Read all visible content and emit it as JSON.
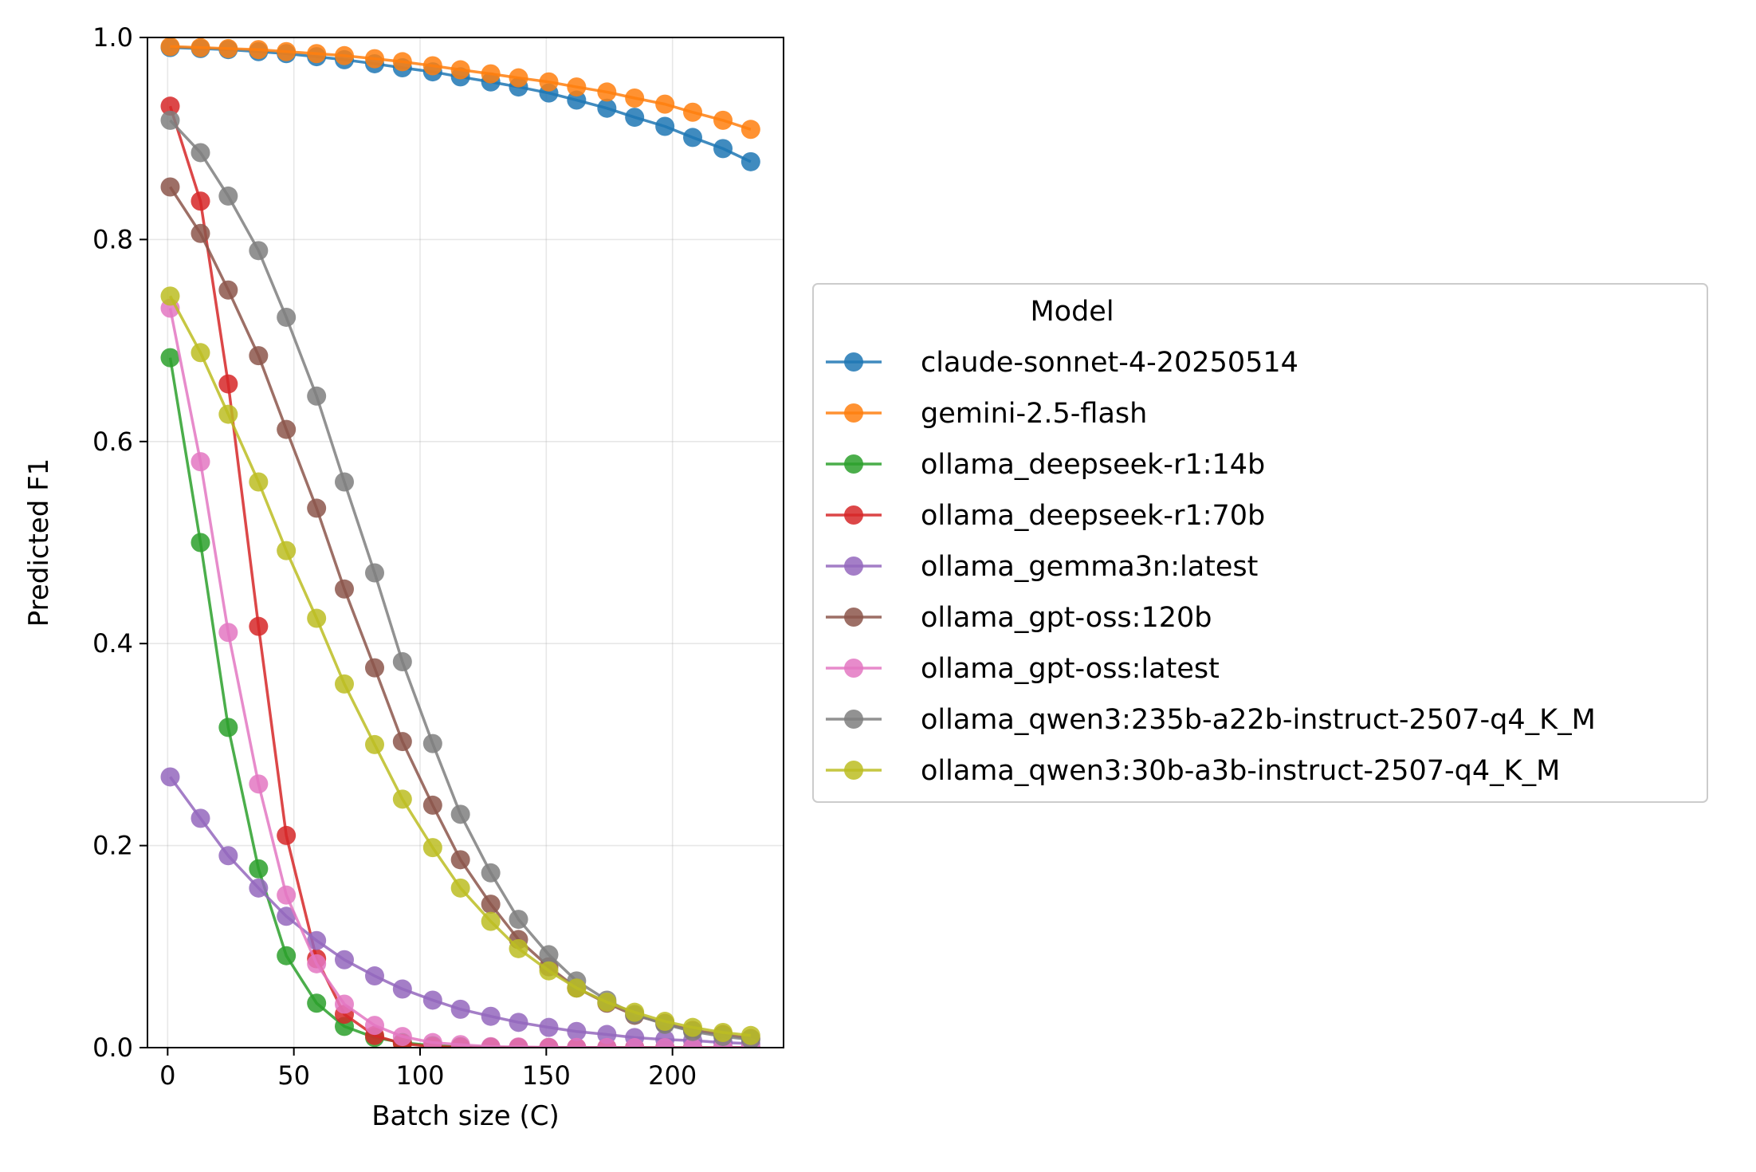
{
  "chart_data": {
    "type": "line",
    "xlabel": "Batch size (C)",
    "ylabel": "Predicted F1",
    "xlim": [
      -8,
      244
    ],
    "ylim": [
      0,
      1
    ],
    "xticks": [
      0,
      50,
      100,
      150,
      200
    ],
    "yticks": [
      0.0,
      0.2,
      0.4,
      0.6,
      0.8,
      1.0
    ],
    "xtick_labels": [
      "0",
      "50",
      "100",
      "150",
      "200"
    ],
    "ytick_labels": [
      "0.0",
      "0.2",
      "0.4",
      "0.6",
      "0.8",
      "1.0"
    ],
    "grid": true,
    "legend_title": "Model",
    "legend_placement": "outside-right",
    "x": [
      1,
      13,
      24,
      36,
      47,
      59,
      70,
      82,
      93,
      105,
      116,
      128,
      139,
      151,
      162,
      174,
      185,
      197,
      208,
      220,
      231
    ],
    "series": [
      {
        "name": "claude-sonnet-4-20250514",
        "color": "#1f77b4",
        "values": [
          0.99,
          0.989,
          0.988,
          0.986,
          0.984,
          0.981,
          0.978,
          0.974,
          0.97,
          0.966,
          0.961,
          0.956,
          0.951,
          0.945,
          0.938,
          0.93,
          0.921,
          0.912,
          0.901,
          0.89,
          0.877
        ]
      },
      {
        "name": "gemini-2.5-flash",
        "color": "#ff7f0e",
        "values": [
          0.991,
          0.99,
          0.989,
          0.988,
          0.986,
          0.984,
          0.982,
          0.979,
          0.976,
          0.972,
          0.968,
          0.964,
          0.96,
          0.956,
          0.951,
          0.946,
          0.94,
          0.934,
          0.926,
          0.918,
          0.909
        ]
      },
      {
        "name": "ollama_deepseek-r1:14b",
        "color": "#2ca02c",
        "values": [
          0.683,
          0.5,
          0.317,
          0.177,
          0.091,
          0.044,
          0.021,
          0.01,
          0.005,
          0.002,
          0.001,
          0.0005,
          0.0002,
          0.0001,
          0.0,
          0.0,
          0.0,
          0.0,
          0.0,
          0.0,
          0.0
        ]
      },
      {
        "name": "ollama_deepseek-r1:70b",
        "color": "#d62728",
        "values": [
          0.932,
          0.838,
          0.657,
          0.417,
          0.21,
          0.088,
          0.033,
          0.012,
          0.004,
          0.001,
          0.0004,
          0.0001,
          0.0,
          0.0,
          0.0,
          0.0,
          0.0,
          0.0,
          0.0,
          0.0,
          0.0
        ]
      },
      {
        "name": "ollama_gemma3n:latest",
        "color": "#9467bd",
        "values": [
          0.268,
          0.227,
          0.19,
          0.158,
          0.13,
          0.106,
          0.087,
          0.071,
          0.058,
          0.047,
          0.038,
          0.031,
          0.025,
          0.02,
          0.016,
          0.013,
          0.01,
          0.008,
          0.007,
          0.005,
          0.004
        ]
      },
      {
        "name": "ollama_gpt-oss:120b",
        "color": "#8c564b",
        "values": [
          0.852,
          0.806,
          0.75,
          0.685,
          0.612,
          0.534,
          0.454,
          0.376,
          0.303,
          0.24,
          0.186,
          0.142,
          0.107,
          0.08,
          0.059,
          0.044,
          0.032,
          0.024,
          0.017,
          0.013,
          0.009
        ]
      },
      {
        "name": "ollama_gpt-oss:latest",
        "color": "#e377c2",
        "values": [
          0.732,
          0.58,
          0.411,
          0.261,
          0.151,
          0.083,
          0.043,
          0.022,
          0.011,
          0.005,
          0.003,
          0.001,
          0.0007,
          0.0003,
          0.0002,
          0.0001,
          0.0,
          0.0,
          0.0,
          0.0,
          0.0
        ]
      },
      {
        "name": "ollama_qwen3:235b-a22b-instruct-2507-q4_K_M",
        "color": "#7f7f7f",
        "values": [
          0.918,
          0.886,
          0.843,
          0.789,
          0.723,
          0.645,
          0.56,
          0.47,
          0.382,
          0.301,
          0.231,
          0.173,
          0.127,
          0.092,
          0.066,
          0.047,
          0.033,
          0.023,
          0.016,
          0.011,
          0.008
        ]
      },
      {
        "name": "ollama_qwen3:30b-a3b-instruct-2507-q4_K_M",
        "color": "#bcbd22",
        "values": [
          0.744,
          0.688,
          0.627,
          0.56,
          0.492,
          0.425,
          0.36,
          0.3,
          0.246,
          0.198,
          0.158,
          0.125,
          0.098,
          0.076,
          0.059,
          0.045,
          0.035,
          0.026,
          0.02,
          0.015,
          0.012
        ]
      }
    ]
  }
}
